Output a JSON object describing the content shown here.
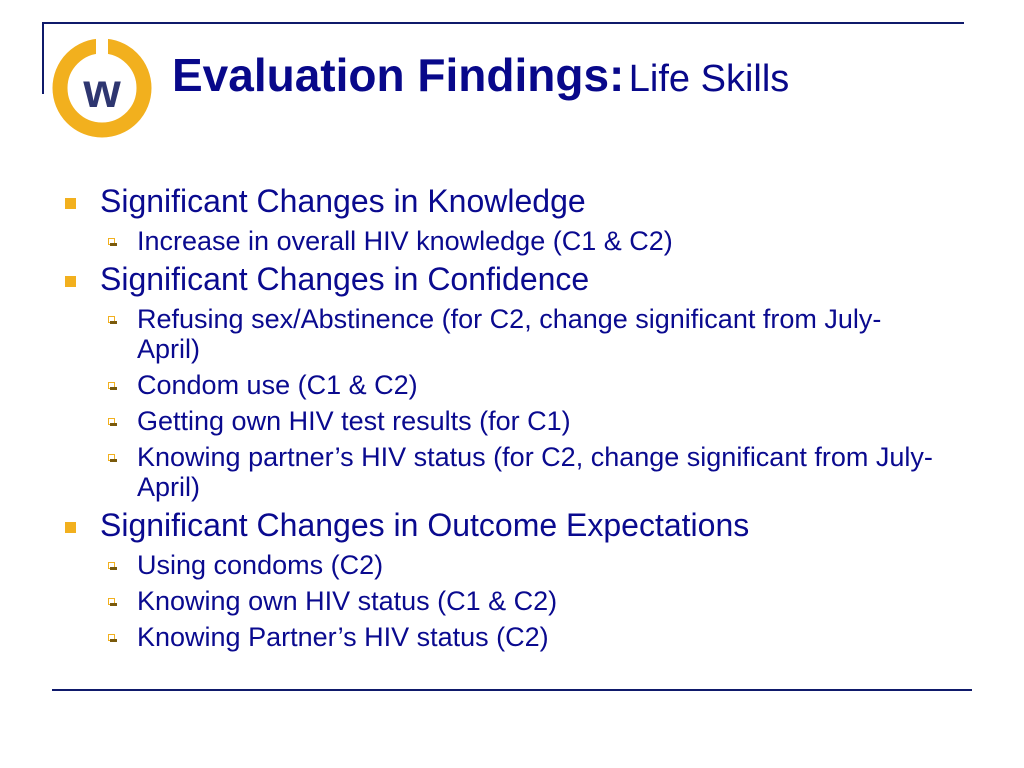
{
  "colors": {
    "title": "#08088a",
    "text": "#0a0a8f",
    "bullet": "#f2b01e",
    "frame": "#0f1a6b",
    "logo_ring": "#f2b01e",
    "logo_w": "#2e3670"
  },
  "logo": {
    "letter": "w"
  },
  "title": {
    "main": "Evaluation Findings:",
    "sub": "Life Skills"
  },
  "sections": [
    {
      "text": "Significant Changes in Knowledge",
      "items": [
        "Increase in overall HIV knowledge (C1 & C2)"
      ]
    },
    {
      "text": "Significant Changes in Confidence",
      "items": [
        "Refusing sex/Abstinence (for C2, change significant from July-April)",
        "Condom use (C1 & C2)",
        "Getting own HIV test results (for C1)",
        "Knowing partner’s HIV status (for C2, change significant from July-April)"
      ]
    },
    {
      "text": "Significant Changes in Outcome Expectations",
      "items": [
        "Using condoms (C2)",
        "Knowing own HIV status (C1 & C2)",
        "Knowing Partner’s HIV status (C2)"
      ]
    }
  ]
}
